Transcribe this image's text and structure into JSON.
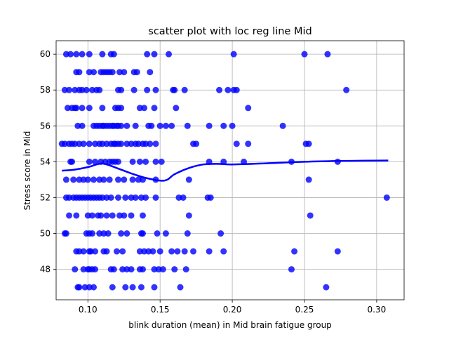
{
  "chart_data": {
    "type": "scatter",
    "title": "scatter plot with loc reg line Mid",
    "xlabel": "blink duration (mean) in Mid brain fatigue group",
    "ylabel": "Stress score in Mid",
    "xlim": [
      0.078,
      0.319
    ],
    "ylim": [
      46.3,
      60.75
    ],
    "x_ticks": [
      0.1,
      0.15,
      0.2,
      0.25,
      0.3
    ],
    "x_tick_labels": [
      "0.10",
      "0.15",
      "0.20",
      "0.25",
      "0.30"
    ],
    "y_ticks": [
      48,
      50,
      52,
      54,
      56,
      58,
      60
    ],
    "y_tick_labels": [
      "48",
      "50",
      "52",
      "54",
      "56",
      "58",
      "60"
    ],
    "grid": true,
    "colors": {
      "points": "#0000ff",
      "line": "#0000ff",
      "grid": "#b0b0b0"
    },
    "points": [
      [
        0.085,
        60
      ],
      [
        0.088,
        60
      ],
      [
        0.092,
        60
      ],
      [
        0.096,
        60
      ],
      [
        0.101,
        60
      ],
      [
        0.11,
        60
      ],
      [
        0.116,
        60
      ],
      [
        0.118,
        60
      ],
      [
        0.141,
        60
      ],
      [
        0.146,
        60
      ],
      [
        0.156,
        60
      ],
      [
        0.201,
        60
      ],
      [
        0.25,
        60
      ],
      [
        0.266,
        60
      ],
      [
        0.092,
        59
      ],
      [
        0.094,
        59
      ],
      [
        0.101,
        59
      ],
      [
        0.104,
        59
      ],
      [
        0.109,
        59
      ],
      [
        0.111,
        59
      ],
      [
        0.113,
        59
      ],
      [
        0.115,
        59
      ],
      [
        0.117,
        59
      ],
      [
        0.122,
        59
      ],
      [
        0.125,
        59
      ],
      [
        0.132,
        59
      ],
      [
        0.134,
        59
      ],
      [
        0.143,
        59
      ],
      [
        0.084,
        58
      ],
      [
        0.087,
        58
      ],
      [
        0.091,
        58
      ],
      [
        0.094,
        58
      ],
      [
        0.096,
        58
      ],
      [
        0.099,
        58
      ],
      [
        0.103,
        58
      ],
      [
        0.106,
        58
      ],
      [
        0.108,
        58
      ],
      [
        0.121,
        58
      ],
      [
        0.123,
        58
      ],
      [
        0.132,
        58
      ],
      [
        0.141,
        58
      ],
      [
        0.147,
        58
      ],
      [
        0.159,
        58
      ],
      [
        0.16,
        58
      ],
      [
        0.167,
        58
      ],
      [
        0.191,
        58
      ],
      [
        0.197,
        58
      ],
      [
        0.201,
        58
      ],
      [
        0.203,
        58
      ],
      [
        0.279,
        58
      ],
      [
        0.086,
        57
      ],
      [
        0.089,
        57
      ],
      [
        0.091,
        57
      ],
      [
        0.092,
        57
      ],
      [
        0.096,
        57
      ],
      [
        0.101,
        57
      ],
      [
        0.11,
        57
      ],
      [
        0.119,
        57
      ],
      [
        0.121,
        57
      ],
      [
        0.123,
        57
      ],
      [
        0.136,
        57
      ],
      [
        0.139,
        57
      ],
      [
        0.146,
        57
      ],
      [
        0.161,
        57
      ],
      [
        0.211,
        57
      ],
      [
        0.093,
        56
      ],
      [
        0.096,
        56
      ],
      [
        0.104,
        56
      ],
      [
        0.106,
        56
      ],
      [
        0.108,
        56
      ],
      [
        0.11,
        56
      ],
      [
        0.111,
        56
      ],
      [
        0.113,
        56
      ],
      [
        0.115,
        56
      ],
      [
        0.117,
        56
      ],
      [
        0.118,
        56
      ],
      [
        0.12,
        56
      ],
      [
        0.121,
        56
      ],
      [
        0.123,
        56
      ],
      [
        0.127,
        56
      ],
      [
        0.133,
        56
      ],
      [
        0.142,
        56
      ],
      [
        0.144,
        56
      ],
      [
        0.15,
        56
      ],
      [
        0.154,
        56
      ],
      [
        0.158,
        56
      ],
      [
        0.169,
        56
      ],
      [
        0.184,
        56
      ],
      [
        0.194,
        56
      ],
      [
        0.2,
        56
      ],
      [
        0.235,
        56
      ],
      [
        0.082,
        55
      ],
      [
        0.084,
        55
      ],
      [
        0.087,
        55
      ],
      [
        0.089,
        55
      ],
      [
        0.091,
        55
      ],
      [
        0.094,
        55
      ],
      [
        0.097,
        55
      ],
      [
        0.101,
        55
      ],
      [
        0.105,
        55
      ],
      [
        0.108,
        55
      ],
      [
        0.11,
        55
      ],
      [
        0.113,
        55
      ],
      [
        0.116,
        55
      ],
      [
        0.118,
        55
      ],
      [
        0.119,
        55
      ],
      [
        0.121,
        55
      ],
      [
        0.123,
        55
      ],
      [
        0.127,
        55
      ],
      [
        0.13,
        55
      ],
      [
        0.133,
        55
      ],
      [
        0.135,
        55
      ],
      [
        0.138,
        55
      ],
      [
        0.14,
        55
      ],
      [
        0.143,
        55
      ],
      [
        0.147,
        55
      ],
      [
        0.173,
        55
      ],
      [
        0.175,
        55
      ],
      [
        0.203,
        55
      ],
      [
        0.211,
        55
      ],
      [
        0.251,
        55
      ],
      [
        0.253,
        55
      ],
      [
        0.088,
        54
      ],
      [
        0.089,
        54
      ],
      [
        0.101,
        54
      ],
      [
        0.105,
        54
      ],
      [
        0.109,
        54
      ],
      [
        0.112,
        54
      ],
      [
        0.115,
        54
      ],
      [
        0.117,
        54
      ],
      [
        0.119,
        54
      ],
      [
        0.121,
        54
      ],
      [
        0.131,
        54
      ],
      [
        0.136,
        54
      ],
      [
        0.14,
        54
      ],
      [
        0.147,
        54
      ],
      [
        0.151,
        54
      ],
      [
        0.184,
        54
      ],
      [
        0.194,
        54
      ],
      [
        0.208,
        54
      ],
      [
        0.241,
        54
      ],
      [
        0.273,
        54
      ],
      [
        0.085,
        53
      ],
      [
        0.09,
        53
      ],
      [
        0.094,
        53
      ],
      [
        0.097,
        53
      ],
      [
        0.1,
        53
      ],
      [
        0.104,
        53
      ],
      [
        0.108,
        53
      ],
      [
        0.111,
        53
      ],
      [
        0.115,
        53
      ],
      [
        0.121,
        53
      ],
      [
        0.125,
        53
      ],
      [
        0.131,
        53
      ],
      [
        0.135,
        53
      ],
      [
        0.138,
        53
      ],
      [
        0.147,
        53
      ],
      [
        0.17,
        53
      ],
      [
        0.253,
        53
      ],
      [
        0.085,
        52
      ],
      [
        0.087,
        52
      ],
      [
        0.09,
        52
      ],
      [
        0.092,
        52
      ],
      [
        0.094,
        52
      ],
      [
        0.096,
        52
      ],
      [
        0.098,
        52
      ],
      [
        0.1,
        52
      ],
      [
        0.102,
        52
      ],
      [
        0.104,
        52
      ],
      [
        0.106,
        52
      ],
      [
        0.108,
        52
      ],
      [
        0.11,
        52
      ],
      [
        0.113,
        52
      ],
      [
        0.116,
        52
      ],
      [
        0.121,
        52
      ],
      [
        0.126,
        52
      ],
      [
        0.13,
        52
      ],
      [
        0.133,
        52
      ],
      [
        0.137,
        52
      ],
      [
        0.14,
        52
      ],
      [
        0.147,
        52
      ],
      [
        0.163,
        52
      ],
      [
        0.166,
        52
      ],
      [
        0.183,
        52
      ],
      [
        0.185,
        52
      ],
      [
        0.307,
        52
      ],
      [
        0.087,
        51
      ],
      [
        0.092,
        51
      ],
      [
        0.1,
        51
      ],
      [
        0.103,
        51
      ],
      [
        0.107,
        51
      ],
      [
        0.109,
        51
      ],
      [
        0.113,
        51
      ],
      [
        0.117,
        51
      ],
      [
        0.122,
        51
      ],
      [
        0.125,
        51
      ],
      [
        0.13,
        51
      ],
      [
        0.138,
        51
      ],
      [
        0.17,
        51
      ],
      [
        0.254,
        51
      ],
      [
        0.084,
        50
      ],
      [
        0.085,
        50
      ],
      [
        0.099,
        50
      ],
      [
        0.101,
        50
      ],
      [
        0.103,
        50
      ],
      [
        0.108,
        50
      ],
      [
        0.111,
        50
      ],
      [
        0.114,
        50
      ],
      [
        0.123,
        50
      ],
      [
        0.127,
        50
      ],
      [
        0.137,
        50
      ],
      [
        0.138,
        50
      ],
      [
        0.148,
        50
      ],
      [
        0.154,
        50
      ],
      [
        0.169,
        50
      ],
      [
        0.192,
        50
      ],
      [
        0.092,
        49
      ],
      [
        0.094,
        49
      ],
      [
        0.097,
        49
      ],
      [
        0.101,
        49
      ],
      [
        0.102,
        49
      ],
      [
        0.105,
        49
      ],
      [
        0.111,
        49
      ],
      [
        0.113,
        49
      ],
      [
        0.12,
        49
      ],
      [
        0.124,
        49
      ],
      [
        0.136,
        49
      ],
      [
        0.139,
        49
      ],
      [
        0.142,
        49
      ],
      [
        0.145,
        49
      ],
      [
        0.15,
        49
      ],
      [
        0.158,
        49
      ],
      [
        0.162,
        49
      ],
      [
        0.167,
        49
      ],
      [
        0.173,
        49
      ],
      [
        0.184,
        49
      ],
      [
        0.194,
        49
      ],
      [
        0.243,
        49
      ],
      [
        0.273,
        49
      ],
      [
        0.091,
        48
      ],
      [
        0.097,
        48
      ],
      [
        0.1,
        48
      ],
      [
        0.101,
        48
      ],
      [
        0.103,
        48
      ],
      [
        0.105,
        48
      ],
      [
        0.116,
        48
      ],
      [
        0.118,
        48
      ],
      [
        0.124,
        48
      ],
      [
        0.127,
        48
      ],
      [
        0.13,
        48
      ],
      [
        0.136,
        48
      ],
      [
        0.138,
        48
      ],
      [
        0.146,
        48
      ],
      [
        0.149,
        48
      ],
      [
        0.152,
        48
      ],
      [
        0.16,
        48
      ],
      [
        0.168,
        48
      ],
      [
        0.241,
        48
      ],
      [
        0.093,
        47
      ],
      [
        0.094,
        47
      ],
      [
        0.098,
        47
      ],
      [
        0.101,
        47
      ],
      [
        0.104,
        47
      ],
      [
        0.117,
        47
      ],
      [
        0.126,
        47
      ],
      [
        0.131,
        47
      ],
      [
        0.137,
        47
      ],
      [
        0.146,
        47
      ],
      [
        0.164,
        47
      ],
      [
        0.265,
        47
      ]
    ],
    "fit_line": {
      "x": [
        0.082,
        0.09,
        0.1,
        0.106,
        0.11,
        0.115,
        0.12,
        0.13,
        0.14,
        0.15,
        0.155,
        0.16,
        0.17,
        0.18,
        0.19,
        0.2,
        0.22,
        0.25,
        0.28,
        0.308
      ],
      "y": [
        53.5,
        53.55,
        53.7,
        53.85,
        53.9,
        53.8,
        53.65,
        53.35,
        53.1,
        52.95,
        53.0,
        53.3,
        53.65,
        53.85,
        53.88,
        53.85,
        53.9,
        54.0,
        54.05,
        54.07
      ]
    }
  }
}
